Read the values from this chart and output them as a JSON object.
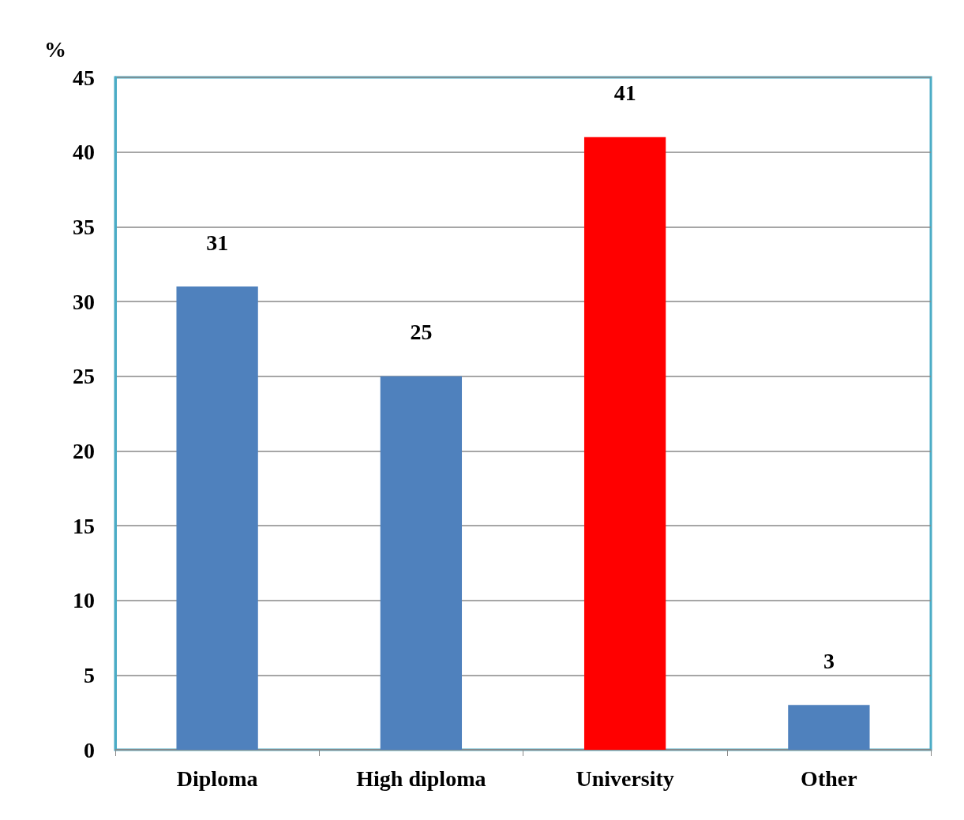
{
  "chart_data": {
    "type": "bar",
    "ylabel": "%",
    "categories": [
      "Diploma",
      "High diploma",
      "University",
      "Other"
    ],
    "values": [
      31,
      25,
      41,
      3
    ],
    "colors": [
      "#4f81bd",
      "#4f81bd",
      "#ff0000",
      "#4f81bd"
    ],
    "ylim": [
      0,
      45
    ],
    "yticks": [
      0,
      5,
      10,
      15,
      20,
      25,
      30,
      35,
      40,
      45
    ],
    "grid": "y",
    "data_labels": true
  }
}
